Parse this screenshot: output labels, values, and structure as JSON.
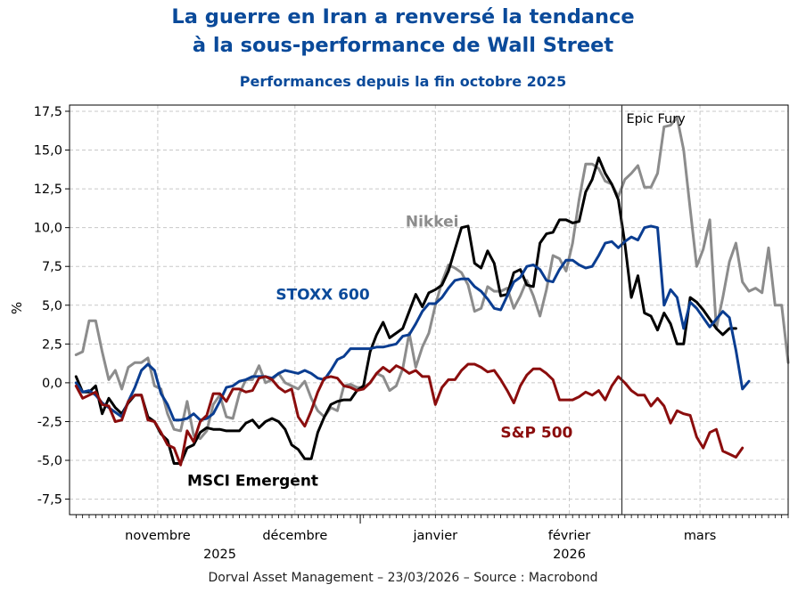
{
  "chart_data": {
    "type": "line",
    "title_line1": "La guerre en Iran a renversé la tendance",
    "title_line2": "à la sous-performance de Wall Street",
    "subtitle": "Performances depuis la fin octobre 2025",
    "ylabel": "%",
    "ylim": [
      -8.5,
      17.9
    ],
    "yticks": [
      17.5,
      15.0,
      12.5,
      10.0,
      7.5,
      5.0,
      2.5,
      0.0,
      -2.5,
      -5.0,
      -7.5
    ],
    "ytick_labels": [
      "17,5",
      "15,0",
      "12,5",
      "10,0",
      "7,5",
      "5,0",
      "2,5",
      "0,0",
      "-2,5",
      "-5,0",
      "-7,5"
    ],
    "x_unit": "trading day index (0 = 27/10/2025)",
    "xlim": [
      -1,
      109
    ],
    "month_labels": [
      {
        "label": "novembre",
        "x": 12.5
      },
      {
        "label": "décembre",
        "x": 33.5
      },
      {
        "label": "janvier",
        "x": 55.0
      },
      {
        "label": "février",
        "x": 75.5
      },
      {
        "label": "mars",
        "x": 95.5
      }
    ],
    "year_labels": [
      {
        "label": "2025",
        "x": 22.0
      },
      {
        "label": "2026",
        "x": 75.5
      }
    ],
    "year_boundary_x": 44,
    "event": {
      "label": "Epic Fury",
      "x": 83
    },
    "series": [
      {
        "name": "Nikkei",
        "label": "Nikkei",
        "color": "#8c8c8c",
        "label_color": "#8c8c8c",
        "values": [
          1.8,
          2.0,
          4.0,
          4.0,
          2.0,
          0.2,
          0.8,
          -0.4,
          1.0,
          1.3,
          1.3,
          1.6,
          -0.2,
          -0.4,
          -2.0,
          -3.0,
          -3.1,
          -1.2,
          -3.4,
          -3.6,
          -3.1,
          -1.4,
          -0.8,
          -2.2,
          -2.3,
          -0.7,
          0.2,
          0.2,
          1.1,
          0.0,
          0.2,
          0.6,
          0.0,
          -0.2,
          -0.4,
          0.1,
          -1.0,
          -1.8,
          -2.2,
          -1.6,
          -1.8,
          -0.2,
          -0.1,
          -0.3,
          -0.3,
          0.0,
          0.6,
          0.4,
          -0.5,
          -0.2,
          0.9,
          3.2,
          1.0,
          2.3,
          3.2,
          5.0,
          6.5,
          7.6,
          7.4,
          7.1,
          6.3,
          4.6,
          4.8,
          6.2,
          5.9,
          5.9,
          6.1,
          4.8,
          5.6,
          6.6,
          5.6,
          4.3,
          6.0,
          8.2,
          8.0,
          7.2,
          9.0,
          11.8,
          14.1,
          14.1,
          13.8,
          13.0,
          12.8,
          12.0,
          13.1,
          13.5,
          14.0,
          12.6,
          12.6,
          13.5,
          16.5,
          16.6,
          17.1,
          15.0,
          11.2,
          7.5,
          8.6,
          10.5,
          3.5,
          5.5,
          7.8,
          9.0,
          6.5,
          5.9,
          6.1,
          5.8,
          8.7,
          5.0,
          5.0,
          1.3
        ]
      },
      {
        "name": "MSCI Emergent",
        "label": "MSCI Emergent",
        "color": "#000000",
        "label_color": "#000000",
        "values": [
          0.4,
          -0.6,
          -0.6,
          -0.2,
          -2.0,
          -1.0,
          -1.6,
          -2.0,
          -1.3,
          -0.8,
          -0.8,
          -2.2,
          -2.5,
          -3.3,
          -3.7,
          -5.2,
          -5.2,
          -4.2,
          -4.0,
          -3.2,
          -2.9,
          -3.0,
          -3.0,
          -3.1,
          -3.1,
          -3.1,
          -2.6,
          -2.4,
          -2.9,
          -2.5,
          -2.3,
          -2.5,
          -3.0,
          -4.0,
          -4.3,
          -4.9,
          -4.9,
          -3.2,
          -2.2,
          -1.4,
          -1.2,
          -1.1,
          -1.1,
          -0.5,
          -0.2,
          2.0,
          3.1,
          3.9,
          2.9,
          3.2,
          3.5,
          4.6,
          5.7,
          4.9,
          5.8,
          6.0,
          6.3,
          7.2,
          8.6,
          10.0,
          10.1,
          7.7,
          7.4,
          8.5,
          7.7,
          5.6,
          5.7,
          7.1,
          7.3,
          6.3,
          6.2,
          9.0,
          9.6,
          9.7,
          10.5,
          10.5,
          10.3,
          10.4,
          12.3,
          13.1,
          14.5,
          13.5,
          12.8,
          11.8,
          9.0,
          5.5,
          6.9,
          4.5,
          4.3,
          3.4,
          4.5,
          3.8,
          2.5,
          2.5,
          5.5,
          5.2,
          4.7,
          4.1,
          3.5,
          3.1,
          3.5,
          3.5
        ]
      },
      {
        "name": "STOXX 600",
        "label": "STOXX 600",
        "color": "#0a3d91",
        "label_color": "#0a4a9a",
        "values": [
          0.0,
          -0.6,
          -0.5,
          -0.8,
          -1.3,
          -1.6,
          -1.9,
          -2.2,
          -1.2,
          -0.3,
          0.8,
          1.2,
          0.8,
          -0.7,
          -1.4,
          -2.4,
          -2.4,
          -2.3,
          -2.0,
          -2.4,
          -2.3,
          -2.0,
          -1.2,
          -0.3,
          -0.2,
          0.1,
          0.2,
          0.4,
          0.4,
          0.4,
          0.3,
          0.6,
          0.8,
          0.7,
          0.6,
          0.8,
          0.6,
          0.3,
          0.2,
          0.8,
          1.5,
          1.7,
          2.2,
          2.2,
          2.2,
          2.2,
          2.3,
          2.3,
          2.4,
          2.5,
          3.0,
          3.1,
          3.8,
          4.6,
          5.1,
          5.1,
          5.5,
          6.1,
          6.6,
          6.7,
          6.7,
          6.2,
          5.9,
          5.4,
          4.8,
          4.7,
          5.6,
          6.5,
          6.8,
          7.5,
          7.6,
          7.3,
          6.6,
          6.5,
          7.3,
          7.9,
          7.9,
          7.6,
          7.4,
          7.5,
          8.2,
          9.0,
          9.1,
          8.7,
          9.1,
          9.4,
          9.2,
          10.0,
          10.1,
          10.0,
          5.0,
          6.0,
          5.5,
          3.5,
          5.2,
          4.8,
          4.2,
          3.6,
          4.1,
          4.6,
          4.2,
          2.1,
          -0.4,
          0.1
        ]
      },
      {
        "name": "S&P 500",
        "label": "S&P 500",
        "color": "#8b0d0d",
        "label_color": "#8b0d0d",
        "values": [
          -0.2,
          -1.0,
          -0.8,
          -0.6,
          -1.4,
          -1.5,
          -2.5,
          -2.4,
          -1.2,
          -0.8,
          -0.8,
          -2.4,
          -2.5,
          -3.2,
          -4.0,
          -4.2,
          -5.3,
          -3.1,
          -3.8,
          -2.5,
          -2.1,
          -0.7,
          -0.7,
          -1.2,
          -0.4,
          -0.4,
          -0.6,
          -0.5,
          0.3,
          0.4,
          0.2,
          -0.3,
          -0.6,
          -0.4,
          -2.2,
          -2.8,
          -1.8,
          -0.6,
          0.3,
          0.4,
          0.3,
          -0.2,
          -0.3,
          -0.5,
          -0.4,
          0.0,
          0.6,
          1.0,
          0.7,
          1.1,
          0.9,
          0.6,
          0.8,
          0.4,
          0.4,
          -1.4,
          -0.3,
          0.2,
          0.2,
          0.8,
          1.2,
          1.2,
          1.0,
          0.7,
          0.8,
          0.2,
          -0.5,
          -1.3,
          -0.2,
          0.5,
          0.9,
          0.9,
          0.6,
          0.2,
          -1.1,
          -1.1,
          -1.1,
          -0.9,
          -0.6,
          -0.8,
          -0.5,
          -1.1,
          -0.2,
          0.4,
          0.0,
          -0.5,
          -0.8,
          -0.8,
          -1.5,
          -1.0,
          -1.5,
          -2.6,
          -1.8,
          -2.0,
          -2.1,
          -3.5,
          -4.2,
          -3.2,
          -3.0,
          -4.4,
          -4.6,
          -4.8,
          -4.2
        ]
      }
    ],
    "annotations": [
      "Epic Fury"
    ]
  },
  "footer": {
    "text": "Dorval Asset Management – 23/03/2026 –   Source : Macrobond"
  }
}
